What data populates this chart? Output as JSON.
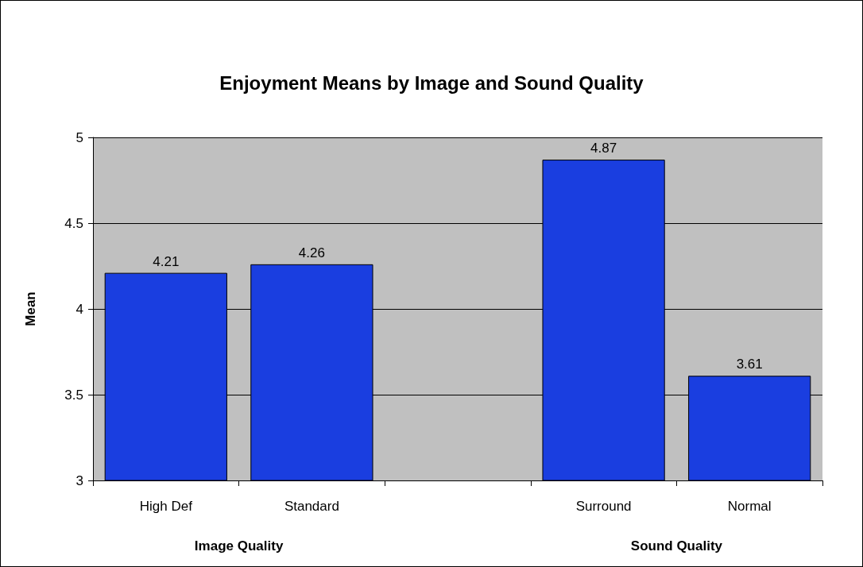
{
  "chart_data": {
    "type": "bar",
    "title": "Enjoyment Means by Image and Sound Quality",
    "ylabel": "Mean",
    "categories": [
      "High Def",
      "Standard",
      null,
      "Surround",
      "Normal"
    ],
    "values": [
      4.21,
      4.26,
      null,
      4.87,
      3.61
    ],
    "color": "#1a3ee0",
    "ylim": [
      3,
      5
    ],
    "yticks": [
      3,
      3.5,
      4,
      4.5,
      5
    ],
    "grid": "y",
    "data_labels": true,
    "annotations": [
      "Image Quality",
      "Sound Quality"
    ]
  }
}
